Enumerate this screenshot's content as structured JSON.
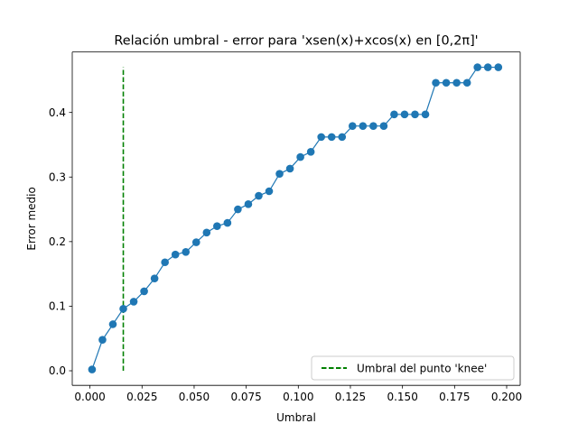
{
  "chart_data": {
    "type": "line",
    "title": "Relación umbral - error para 'xsen(x)+xcos(x) en [0,2π]'",
    "xlabel": "Umbral",
    "ylabel": "Error medio",
    "xlim": [
      -0.0085,
      0.2065
    ],
    "ylim": [
      -0.0226,
      0.4937
    ],
    "xticks": [
      "0.000",
      "0.025",
      "0.050",
      "0.075",
      "0.100",
      "0.125",
      "0.150",
      "0.175",
      "0.200"
    ],
    "yticks": [
      "0.0",
      "0.1",
      "0.2",
      "0.3",
      "0.4"
    ],
    "grid": false,
    "legend_position": "lower-right",
    "series": [
      {
        "color": "#1f77b4",
        "marker": "circle",
        "x": [
          0.001,
          0.006,
          0.011,
          0.016,
          0.021,
          0.026,
          0.031,
          0.036,
          0.041,
          0.046,
          0.051,
          0.056,
          0.061,
          0.066,
          0.071,
          0.076,
          0.081,
          0.086,
          0.091,
          0.096,
          0.101,
          0.106,
          0.111,
          0.116,
          0.121,
          0.126,
          0.131,
          0.136,
          0.141,
          0.146,
          0.151,
          0.156,
          0.161,
          0.166,
          0.171,
          0.176,
          0.181,
          0.186,
          0.191,
          0.196
        ],
        "y": [
          0.002,
          0.048,
          0.072,
          0.096,
          0.107,
          0.123,
          0.143,
          0.168,
          0.18,
          0.184,
          0.199,
          0.214,
          0.224,
          0.229,
          0.25,
          0.258,
          0.271,
          0.278,
          0.305,
          0.313,
          0.331,
          0.339,
          0.362,
          0.362,
          0.362,
          0.379,
          0.379,
          0.379,
          0.379,
          0.397,
          0.397,
          0.397,
          0.397,
          0.446,
          0.446,
          0.446,
          0.446,
          0.47,
          0.47,
          0.47
        ]
      }
    ],
    "knee_line": {
      "name": "Umbral del punto 'knee'",
      "x": 0.016,
      "y_range": [
        0.0,
        0.47
      ],
      "color": "#008000",
      "style": "dashed"
    }
  }
}
